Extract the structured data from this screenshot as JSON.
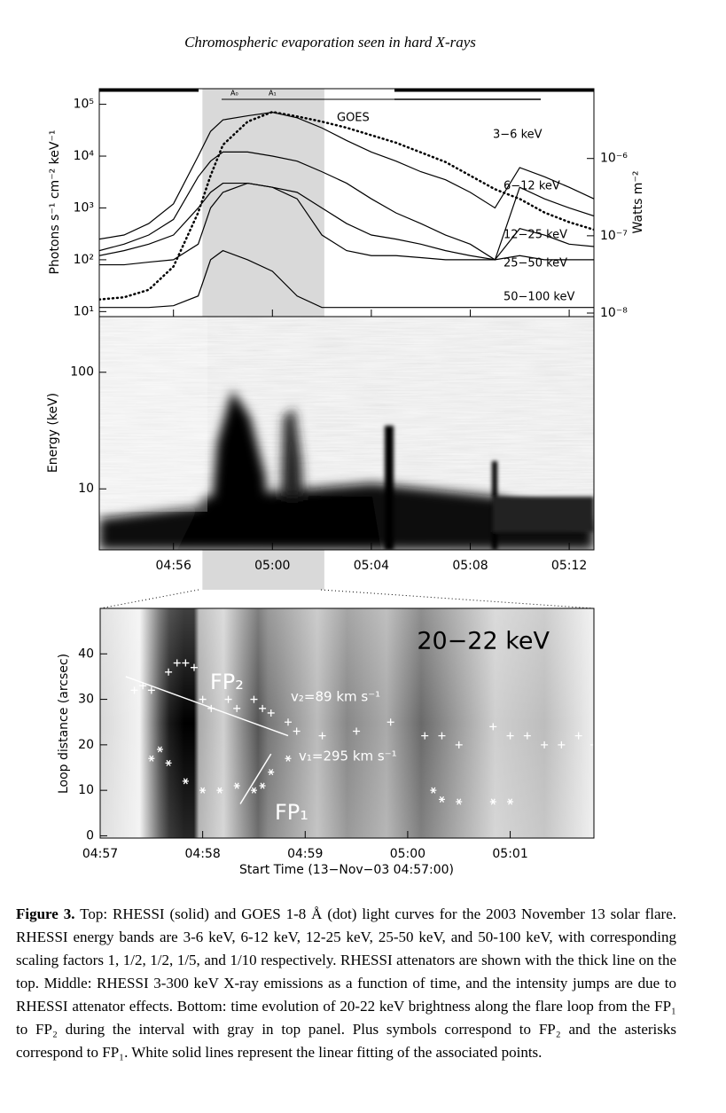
{
  "header": {
    "title": "Chromospheric evaporation seen in hard X-rays"
  },
  "chart_data": [
    {
      "type": "line",
      "ylabel": "Photons s⁻¹ cm⁻² keV⁻¹",
      "y2label": "Watts m⁻²",
      "log_scale": true,
      "xlim": [
        53,
        73
      ],
      "ylim": [
        8,
        200000
      ],
      "y2lim": [
        9e-09,
        8e-06
      ],
      "yticks": [
        {
          "value": 10,
          "label": "10¹"
        },
        {
          "value": 100,
          "label": "10²"
        },
        {
          "value": 1000,
          "label": "10³"
        },
        {
          "value": 10000,
          "label": "10⁴"
        },
        {
          "value": 100000,
          "label": "10⁵"
        }
      ],
      "y2ticks": [
        {
          "value": 1e-08,
          "label": "10⁻⁸"
        },
        {
          "value": 1e-07,
          "label": "10⁻⁷"
        },
        {
          "value": 1e-06,
          "label": "10⁻⁶"
        }
      ],
      "shaded_interval": [
        57.17,
        62.1
      ],
      "attenuator_labels": [
        "A₀",
        "A₁"
      ],
      "x": [
        53,
        54,
        55,
        56,
        57,
        57.5,
        58,
        59,
        60,
        61,
        62,
        63,
        64,
        65,
        66,
        67,
        68,
        69,
        70,
        71,
        72,
        73
      ],
      "series": [
        {
          "name": "3−6 keV",
          "color": "#000000",
          "line_style": "solid",
          "values": [
            250,
            300,
            500,
            1200,
            10000,
            30000,
            50000,
            60000,
            70000,
            55000,
            35000,
            20000,
            12000,
            8000,
            5000,
            3500,
            2000,
            1000,
            6000,
            4000,
            2500,
            1500
          ]
        },
        {
          "name": "6−12 keV",
          "color": "#000000",
          "line_style": "solid",
          "values": [
            150,
            200,
            300,
            600,
            4000,
            8000,
            12000,
            12000,
            10000,
            8000,
            5000,
            3000,
            1500,
            800,
            500,
            300,
            200,
            100,
            2500,
            1500,
            1000,
            700
          ]
        },
        {
          "name": "12−25 keV",
          "color": "#000000",
          "line_style": "solid",
          "values": [
            120,
            150,
            200,
            300,
            1000,
            2000,
            3000,
            3000,
            2500,
            2000,
            1000,
            500,
            300,
            250,
            200,
            150,
            120,
            100,
            400,
            300,
            200,
            180
          ]
        },
        {
          "name": "25−50 keV",
          "color": "#000000",
          "line_style": "solid",
          "values": [
            80,
            80,
            90,
            100,
            200,
            1000,
            2000,
            3000,
            2500,
            1500,
            300,
            150,
            120,
            120,
            110,
            100,
            100,
            100,
            120,
            100,
            100,
            100
          ]
        },
        {
          "name": "50−100 keV",
          "color": "#000000",
          "line_style": "solid",
          "values": [
            12,
            12,
            12,
            13,
            20,
            100,
            150,
            100,
            60,
            20,
            12,
            12,
            12,
            12,
            12,
            12,
            12,
            12,
            12,
            12,
            12,
            12
          ]
        },
        {
          "name": "GOES",
          "color": "#000000",
          "line_style": "dotted",
          "axis": "y2",
          "values": [
            1.5e-08,
            1.6e-08,
            2e-08,
            4e-08,
            2e-07,
            6e-07,
            1.5e-06,
            3e-06,
            4e-06,
            3.5e-06,
            3e-06,
            2.5e-06,
            2e-06,
            1.6e-06,
            1.2e-06,
            9e-07,
            6e-07,
            4e-07,
            3e-07,
            2e-07,
            1.5e-07,
            1.2e-07
          ]
        }
      ]
    },
    {
      "type": "spectrogram",
      "ylabel": "Energy (keV)",
      "log_scale": true,
      "xlim": [
        53,
        73
      ],
      "ylim": [
        3,
        300
      ],
      "yticks": [
        10,
        100
      ],
      "xticks": [
        {
          "value": 56,
          "label": "04:56"
        },
        {
          "value": 60,
          "label": "05:00"
        },
        {
          "value": 64,
          "label": "05:04"
        },
        {
          "value": 68,
          "label": "05:08"
        },
        {
          "value": 72,
          "label": "05:12"
        }
      ]
    },
    {
      "type": "scatter",
      "title": "20−22 keV",
      "xlabel": "Start Time (13−Nov−03 04:57:00)",
      "ylabel": "Loop distance (arcsec)",
      "xlim": [
        0,
        289
      ],
      "ylim": [
        -0.5,
        50
      ],
      "xticks": [
        {
          "value": 0,
          "label": "04:57"
        },
        {
          "value": 60,
          "label": "04:58"
        },
        {
          "value": 120,
          "label": "04:59"
        },
        {
          "value": 180,
          "label": "05:00"
        },
        {
          "value": 240,
          "label": "05:01"
        }
      ],
      "yticks": [
        0,
        10,
        20,
        30,
        40
      ],
      "annotations": [
        "v₂=89 km s⁻¹",
        "v₁=295 km s⁻¹"
      ],
      "series": [
        {
          "name": "FP₂",
          "color": "#ffffff",
          "marker": "plus",
          "x": [
            20,
            25,
            30,
            40,
            45,
            50,
            55,
            60,
            65,
            75,
            80,
            90,
            95,
            100,
            110,
            115,
            130,
            150,
            170,
            190,
            200,
            210,
            230,
            240,
            250,
            260,
            270,
            280,
            289
          ],
          "values": [
            32,
            33,
            32,
            36,
            38,
            38,
            37,
            30,
            28,
            30,
            28,
            30,
            28,
            27,
            25,
            23,
            22,
            23,
            25,
            22,
            22,
            20,
            24,
            22,
            22,
            20,
            20,
            22,
            20
          ]
        },
        {
          "name": "FP₁",
          "color": "#ffffff",
          "marker": "asterisk",
          "x": [
            30,
            35,
            40,
            50,
            60,
            70,
            80,
            90,
            95,
            100,
            110,
            195,
            200,
            210,
            230,
            240
          ],
          "values": [
            17,
            19,
            16,
            12,
            10,
            10,
            11,
            10,
            11,
            14,
            17,
            10,
            8,
            7.5,
            7.5,
            7.5
          ]
        }
      ],
      "fit_lines": [
        {
          "x": [
            15,
            110
          ],
          "values": [
            35,
            22
          ]
        },
        {
          "x": [
            82,
            100
          ],
          "values": [
            7,
            18
          ]
        }
      ]
    }
  ],
  "caption": {
    "label": "Figure 3.",
    "text": "Top: RHESSI (solid) and GOES 1-8 Å (dot) light curves for the 2003 November 13 solar flare. RHESSI energy bands are 3-6 keV, 6-12 keV, 12-25 keV, 25-50 keV, and 50-100 keV, with corresponding scaling factors 1, 1/2, 1/2, 1/5, and 1/10 respectively. RHESSI attenators are shown with the thick line on the top. Middle: RHESSI 3-300 keV X-ray emissions as a function of time, and the intensity jumps are due to RHESSI attenator effects. Bottom: time evolution of 20-22 keV brightness along the flare loop from the FP₁ to FP₂ during the interval with gray in top panel. Plus symbols correspond to FP₂ and the asterisks correspond to FP₁. White solid lines represent the linear fitting of the associated points."
  }
}
